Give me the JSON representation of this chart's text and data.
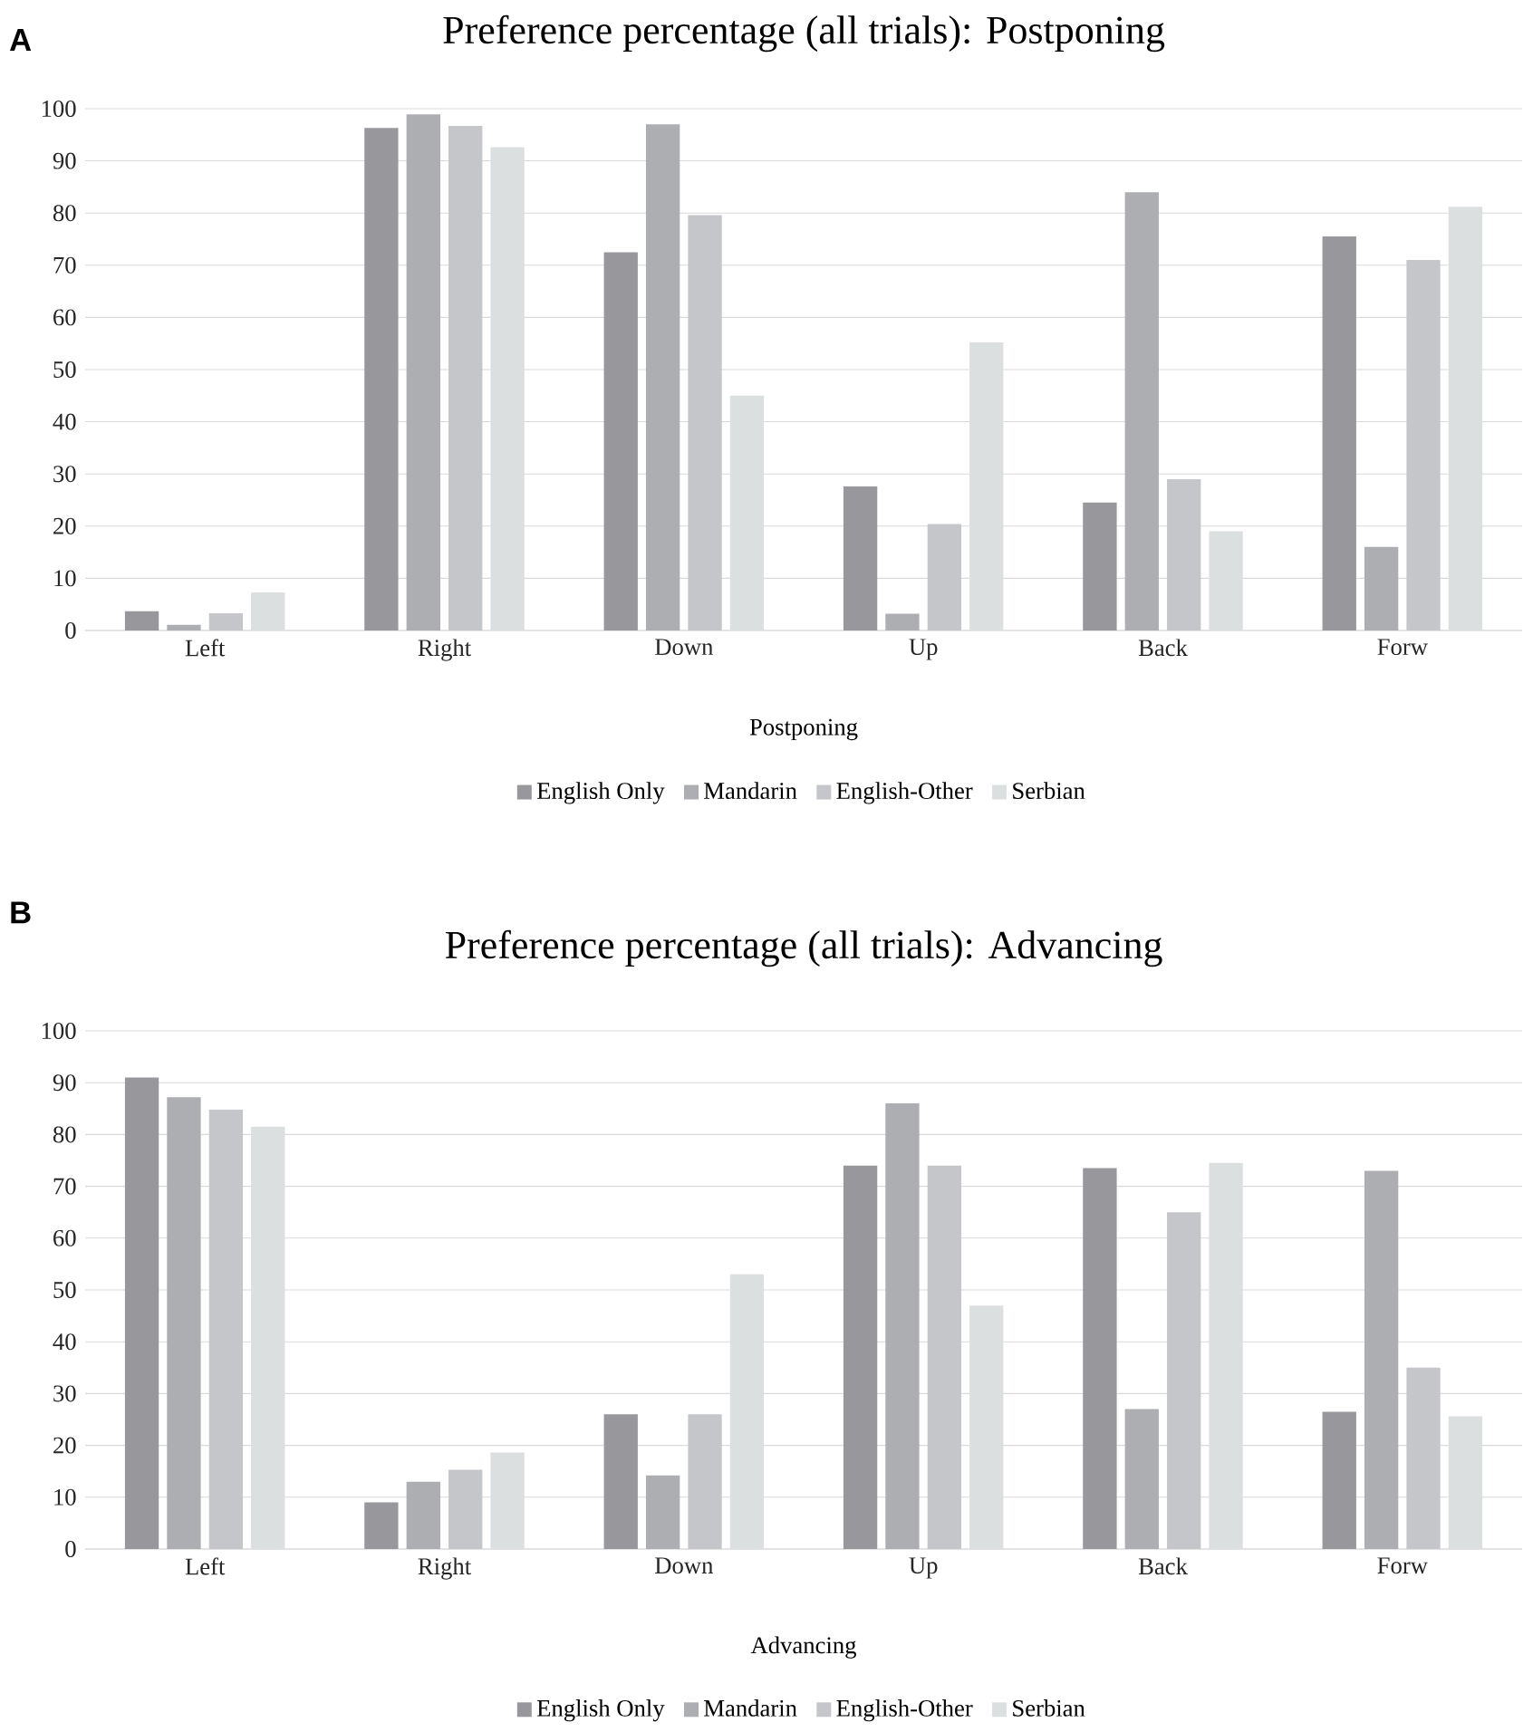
{
  "chart_data": [
    {
      "type": "bar",
      "title": "Preference percentage (all trials): Postponing",
      "xlabel": "Postponing",
      "annotations": [
        "A"
      ],
      "categories": [
        "Left",
        "Right",
        "Down",
        "Up",
        "Back",
        "Forw"
      ],
      "series": [
        {
          "name": "English Only",
          "color": "#98979b",
          "values": [
            3.7,
            96.3,
            72.5,
            27.6,
            24.5,
            75.5
          ]
        },
        {
          "name": "Mandarin",
          "color": "#adaeb2",
          "values": [
            1.1,
            98.9,
            97,
            3.2,
            84,
            16
          ]
        },
        {
          "name": "English-Other",
          "color": "#c5c6ca",
          "values": [
            3.3,
            96.7,
            79.6,
            20.4,
            29,
            71
          ]
        },
        {
          "name": "Serbian",
          "color": "#dcdfe0",
          "values": [
            7.3,
            92.6,
            45,
            55.2,
            19,
            81.2
          ]
        }
      ],
      "ylim": [
        0,
        100
      ],
      "yticks": [
        0,
        10,
        20,
        30,
        40,
        50,
        60,
        70,
        80,
        90,
        100
      ],
      "grid": "y",
      "legend": "bottom"
    },
    {
      "type": "bar",
      "title": "Preference percentage (all trials): Advancing",
      "xlabel": "Advancing",
      "annotations": [
        "B"
      ],
      "categories": [
        "Left",
        "Right",
        "Down",
        "Up",
        "Back",
        "Forw"
      ],
      "series": [
        {
          "name": "English Only",
          "color": "#98979b",
          "values": [
            91,
            9,
            26,
            74,
            73.5,
            26.5
          ]
        },
        {
          "name": "Mandarin",
          "color": "#adaeb2",
          "values": [
            87.2,
            13,
            14.2,
            86,
            27,
            73
          ]
        },
        {
          "name": "English-Other",
          "color": "#c5c6ca",
          "values": [
            84.8,
            15.3,
            26,
            74,
            65,
            35
          ]
        },
        {
          "name": "Serbian",
          "color": "#dcdfe0",
          "values": [
            81.5,
            18.6,
            53,
            47,
            74.5,
            25.6
          ]
        }
      ],
      "ylim": [
        0,
        100
      ],
      "yticks": [
        0,
        10,
        20,
        30,
        40,
        50,
        60,
        70,
        80,
        90,
        100
      ],
      "grid": "y",
      "legend": "bottom"
    }
  ]
}
